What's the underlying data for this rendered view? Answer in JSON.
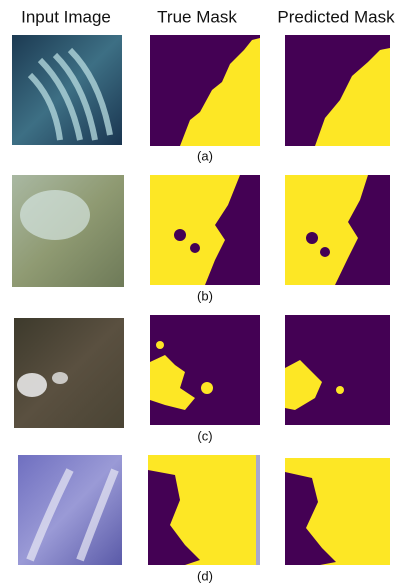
{
  "columns": [
    "Input Image",
    "True Mask",
    "Predicted Mask"
  ],
  "rows": [
    {
      "label": "(a)"
    },
    {
      "label": "(b)"
    },
    {
      "label": "(c)"
    },
    {
      "label": "(d)"
    }
  ]
}
